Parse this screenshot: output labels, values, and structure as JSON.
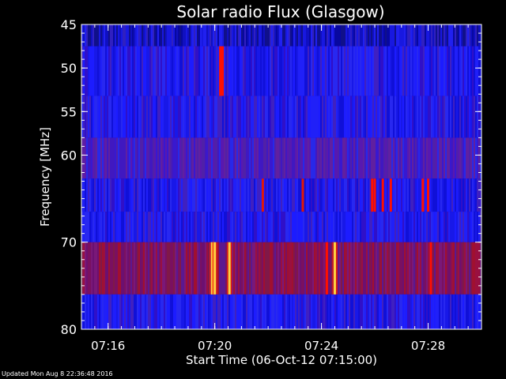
{
  "chart_data": {
    "type": "heatmap",
    "title": "Solar radio Flux (Glasgow)",
    "xlabel": "Start Time (06-Oct-12 07:15:00)",
    "ylabel": "Frequency [MHz]",
    "x_ticks": [
      "07:16",
      "07:20",
      "07:24",
      "07:28"
    ],
    "x_tick_minutes": [
      1,
      5,
      9,
      13
    ],
    "xlim_minutes": [
      0,
      15
    ],
    "y_ticks": [
      45,
      50,
      55,
      60,
      70,
      80
    ],
    "ylim": [
      45,
      80
    ],
    "y_reversed": true,
    "frequency_bands": [
      {
        "range": [
          45,
          47.5
        ],
        "level": "low-blue"
      },
      {
        "range": [
          47.5,
          53.2
        ],
        "level": "blue"
      },
      {
        "range": [
          53.2,
          58
        ],
        "level": "blue"
      },
      {
        "range": [
          58,
          62.7
        ],
        "level": "violet"
      },
      {
        "range": [
          62.7,
          66.5
        ],
        "level": "blue"
      },
      {
        "range": [
          66.5,
          70
        ],
        "level": "blue"
      },
      {
        "range": [
          70,
          76
        ],
        "level": "dark-red"
      },
      {
        "range": [
          76,
          80
        ],
        "level": "blue"
      }
    ],
    "bursts": [
      {
        "minute": 5.25,
        "freq": [
          47.5,
          53.2
        ],
        "intensity": "high"
      },
      {
        "minute": 6.8,
        "freq": [
          62.7,
          66.5
        ],
        "intensity": "medium"
      },
      {
        "minute": 8.3,
        "freq": [
          62.7,
          66.5
        ],
        "intensity": "medium"
      },
      {
        "minute": 10.9,
        "freq": [
          62.7,
          66.5
        ],
        "intensity": "high"
      },
      {
        "minute": 11.0,
        "freq": [
          62.7,
          66.5
        ],
        "intensity": "high"
      },
      {
        "minute": 11.3,
        "freq": [
          62.7,
          66.5
        ],
        "intensity": "high"
      },
      {
        "minute": 11.6,
        "freq": [
          62.7,
          66.5
        ],
        "intensity": "high"
      },
      {
        "minute": 12.8,
        "freq": [
          62.7,
          66.5
        ],
        "intensity": "high"
      },
      {
        "minute": 13.0,
        "freq": [
          62.7,
          66.5
        ],
        "intensity": "high"
      },
      {
        "minute": 4.9,
        "freq": [
          70,
          76
        ],
        "intensity": "very-high"
      },
      {
        "minute": 5.0,
        "freq": [
          70,
          76
        ],
        "intensity": "very-high"
      },
      {
        "minute": 5.55,
        "freq": [
          70,
          76
        ],
        "intensity": "very-high"
      },
      {
        "minute": 9.2,
        "freq": [
          70,
          76
        ],
        "intensity": "high"
      },
      {
        "minute": 9.5,
        "freq": [
          70,
          76
        ],
        "intensity": "very-high"
      },
      {
        "minute": 13.1,
        "freq": [
          70,
          76
        ],
        "intensity": "high"
      }
    ],
    "colors": {
      "background": "#000000",
      "low": "#1010e0",
      "mid": "#6020a8",
      "high": "#ff1000",
      "very_high": "#ffd040",
      "text": "#ffffff"
    }
  },
  "footer": {
    "updated": "Updated Mon Aug  8 22:36:48 2016"
  }
}
